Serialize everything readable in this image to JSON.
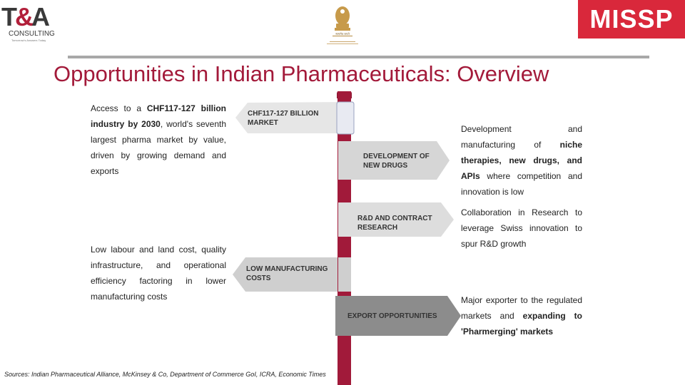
{
  "header": {
    "ta_logo": {
      "mark_t": "T",
      "mark_amp": "&",
      "mark_a": "A",
      "name": "CONSULTING",
      "tagline": "Tomorrow's Answers Today"
    },
    "emblem_caption": "सत्यमेव जयते",
    "missp_logo": "MISSP"
  },
  "title": "Opportunities in Indian Pharmaceuticals: Overview",
  "left_texts": {
    "block1": {
      "pre": "Access to a ",
      "bold1": "CHF117-127 billion industry by 2030",
      "post": ", world's seventh largest pharma market by value, driven by growing demand and exports"
    },
    "block2": "Low labour and land cost, quality infrastructure, and operational efficiency factoring in lower manufacturing costs"
  },
  "signs": [
    {
      "id": "market",
      "label_line1": "CHF117-127 BILLION",
      "label_line2": "MARKET"
    },
    {
      "id": "new-drugs",
      "label_line1": "DEVELOPMENT OF",
      "label_line2": "NEW DRUGS"
    },
    {
      "id": "rd",
      "label_line1": "R&D AND CONTRACT",
      "label_line2": "RESEARCH"
    },
    {
      "id": "low-mfg",
      "label_line1": "LOW MANUFACTURING",
      "label_line2": "COSTS"
    },
    {
      "id": "export",
      "label_line1": "EXPORT OPPORTUNITIES",
      "label_line2": ""
    }
  ],
  "right_texts": {
    "block1": {
      "pre": "Development and manufacturing of ",
      "bold": "niche therapies, new drugs, and APIs",
      "post": " where competition and innovation is low"
    },
    "block2": "Collaboration in Research to leverage Swiss innovation to spur R&D growth",
    "block3": {
      "pre": "Major exporter to the regulated markets and ",
      "bold": "expanding to 'Pharmerging' markets",
      "post": ""
    }
  },
  "footer": "Sources: Indian Pharmaceutical Alliance, McKinsey & Co, Department of Commerce GoI, ICRA, Economic Times",
  "colors": {
    "accent": "#a31a3a",
    "pole": "#a11a3a",
    "missp_red": "#d9283b",
    "sign_light": "#e4e4e4",
    "sign_mid": "#cfcfcf",
    "sign_dark": "#8c8c8c"
  }
}
